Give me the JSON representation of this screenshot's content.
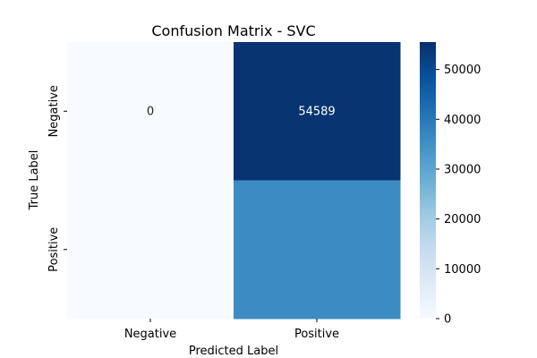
{
  "chart_data": {
    "type": "heatmap",
    "title": "Confusion Matrix - SVC",
    "xlabel": "Predicted Label",
    "ylabel": "True Label",
    "x_categories": [
      "Negative",
      "Positive"
    ],
    "y_categories": [
      "Negative",
      "Positive"
    ],
    "values": [
      [
        0,
        54589
      ],
      [
        null,
        36000
      ]
    ],
    "cell_labels": [
      [
        "0",
        "54589"
      ],
      [
        "",
        ""
      ]
    ],
    "colorscale": "Blues",
    "color_range": [
      0,
      55500
    ],
    "colorbar_ticks": [
      0,
      10000,
      20000,
      30000,
      40000,
      50000
    ],
    "colorbar_tick_labels": [
      "0",
      "10000",
      "20000",
      "30000",
      "40000",
      "50000"
    ]
  }
}
